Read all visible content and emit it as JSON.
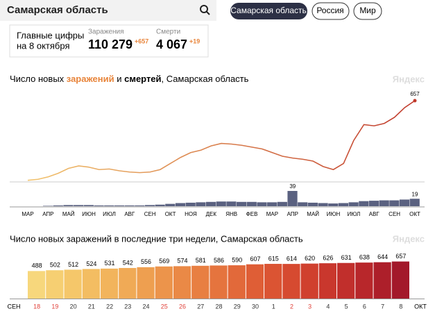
{
  "search": {
    "text": "Самарская область"
  },
  "tabs": [
    "Самарская область",
    "Россия",
    "Мир"
  ],
  "summary": {
    "title_line1": "Главные цифры",
    "title_line2": "на 8 октября",
    "cases_label": "Заражения",
    "cases": "110 279",
    "cases_delta": "+657",
    "deaths_label": "Смерти",
    "deaths": "4 067",
    "deaths_delta": "+19"
  },
  "chart_data": [
    {
      "type": "line",
      "title_parts": [
        "Число новых ",
        "заражений",
        " и ",
        "смертей",
        ", Самарская область"
      ],
      "watermark": "Яндекс",
      "categories": [
        "МАР",
        null,
        "АПР",
        null,
        "МАЙ",
        null,
        "ИЮН",
        null,
        "ИЮЛ",
        null,
        "АВГ",
        null,
        "СЕН",
        null,
        "ОКТ",
        null,
        "НОЯ",
        null,
        "ДЕК",
        null,
        "ЯНВ",
        null,
        "ФЕВ",
        null,
        "МАР",
        null,
        "АПР",
        null,
        "МАЙ",
        null,
        "ИЮН",
        null,
        "ИЮЛ",
        null,
        "АВГ",
        null,
        "СЕН",
        null,
        "ОКТ"
      ],
      "series": [
        {
          "name": "заражений",
          "color": "#e8843a",
          "color_start": "#f2c46e",
          "color_end": "#c0392b",
          "values": [
            2,
            10,
            30,
            60,
            100,
            120,
            110,
            90,
            95,
            80,
            70,
            65,
            70,
            90,
            140,
            190,
            230,
            250,
            285,
            305,
            300,
            290,
            275,
            260,
            230,
            200,
            185,
            175,
            160,
            115,
            90,
            140,
            330,
            460,
            450,
            470,
            520,
            600,
            657
          ]
        },
        {
          "name": "смертей",
          "color": "#5a6180",
          "values": [
            0,
            0,
            1,
            2,
            3,
            3,
            3,
            2,
            2,
            2,
            2,
            2,
            3,
            4,
            6,
            8,
            9,
            10,
            11,
            12,
            12,
            11,
            11,
            10,
            10,
            11,
            39,
            10,
            9,
            8,
            7,
            8,
            10,
            13,
            14,
            15,
            15,
            17,
            19
          ]
        }
      ]
    },
    {
      "type": "bar",
      "title": "Число новых заражений в последние три недели, Самарская область",
      "watermark": "Яндекс",
      "start_label": "СЕН",
      "end_label": "ОКТ",
      "categories": [
        "18",
        "19",
        "20",
        "21",
        "22",
        "23",
        "24",
        "25",
        "26",
        "27",
        "28",
        "29",
        "30",
        "1",
        "2",
        "3",
        "4",
        "5",
        "6",
        "7",
        "8"
      ],
      "label_colors": [
        "#e0413a",
        "#e0413a",
        "#333333",
        "#333333",
        "#333333",
        "#333333",
        "#333333",
        "#e0413a",
        "#e0413a",
        "#333333",
        "#333333",
        "#333333",
        "#333333",
        "#333333",
        "#e0413a",
        "#e0413a",
        "#333333",
        "#333333",
        "#333333",
        "#333333",
        "#333333"
      ],
      "values": [
        488,
        502,
        512,
        524,
        531,
        542,
        556,
        569,
        574,
        581,
        586,
        590,
        607,
        615,
        614,
        620,
        626,
        631,
        638,
        644,
        657
      ],
      "colors": [
        "#f7d77c",
        "#f6cf72",
        "#f5c76a",
        "#f3bd62",
        "#f2b45c",
        "#f0aa56",
        "#ee9f50",
        "#ec944b",
        "#ea8946",
        "#e87f42",
        "#e5743e",
        "#e2693a",
        "#df5e36",
        "#db5433",
        "#d64a30",
        "#d0402e",
        "#c9372d",
        "#c12f2c",
        "#b8272b",
        "#ad1f2a",
        "#a3182a"
      ],
      "ylim": [
        0,
        800
      ]
    }
  ]
}
